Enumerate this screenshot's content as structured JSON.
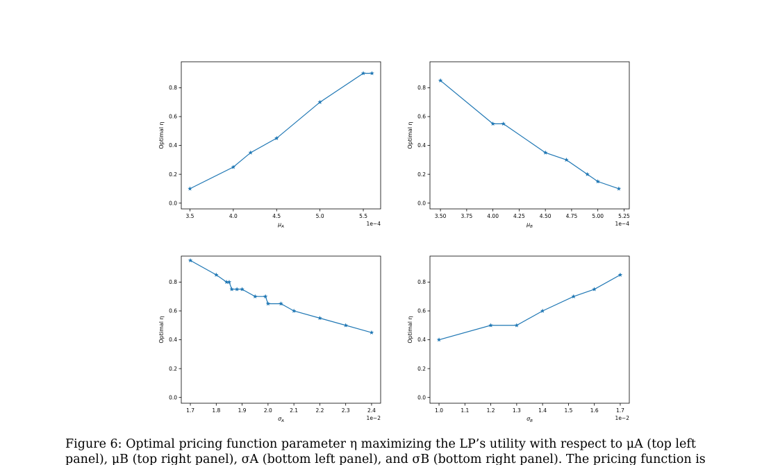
{
  "chart_data": [
    {
      "type": "line",
      "panel": "top-left",
      "x": [
        3.5,
        4.0,
        4.2,
        4.5,
        5.0,
        5.5,
        5.6
      ],
      "series": [
        {
          "values": [
            0.1,
            0.25,
            0.35,
            0.45,
            0.7,
            0.9,
            0.9
          ],
          "marker": "star"
        }
      ],
      "xlabel": "μ",
      "xlabel_sub": "A",
      "ylabel": "Optimal η",
      "xticks": [
        "3.5",
        "4.0",
        "4.5",
        "5.0",
        "5.5"
      ],
      "yticks": [
        "0.0",
        "0.2",
        "0.4",
        "0.6",
        "0.8"
      ],
      "offset_text": "1e−4",
      "xlim": [
        3.4,
        5.7
      ],
      "ylim": [
        -0.04,
        0.98
      ],
      "color": "#1f77b4"
    },
    {
      "type": "line",
      "panel": "top-right",
      "x": [
        3.5,
        4.0,
        4.1,
        4.5,
        4.7,
        4.9,
        5.0,
        5.2
      ],
      "series": [
        {
          "values": [
            0.85,
            0.55,
            0.55,
            0.35,
            0.3,
            0.2,
            0.15,
            0.1
          ],
          "marker": "star"
        }
      ],
      "xlabel": "μ",
      "xlabel_sub": "B",
      "ylabel": "Optimal η",
      "xticks": [
        "3.50",
        "3.75",
        "4.00",
        "4.25",
        "4.50",
        "4.75",
        "5.00",
        "5.25"
      ],
      "yticks": [
        "0.0",
        "0.2",
        "0.4",
        "0.6",
        "0.8"
      ],
      "offset_text": "1e−4",
      "xlim": [
        3.4,
        5.3
      ],
      "ylim": [
        -0.04,
        0.98
      ],
      "color": "#1f77b4"
    },
    {
      "type": "line",
      "panel": "bottom-left",
      "x": [
        1.7,
        1.8,
        1.84,
        1.85,
        1.86,
        1.88,
        1.9,
        1.95,
        1.99,
        2.0,
        2.05,
        2.1,
        2.2,
        2.3,
        2.4
      ],
      "series": [
        {
          "values": [
            0.95,
            0.85,
            0.8,
            0.8,
            0.75,
            0.75,
            0.75,
            0.7,
            0.7,
            0.65,
            0.65,
            0.6,
            0.55,
            0.5,
            0.45
          ],
          "marker": "star"
        }
      ],
      "xlabel": "σ",
      "xlabel_sub": "A",
      "ylabel": "Optimal η",
      "xticks": [
        "1.7",
        "1.8",
        "1.9",
        "2.0",
        "2.1",
        "2.2",
        "2.3",
        "2.4"
      ],
      "yticks": [
        "0.0",
        "0.2",
        "0.4",
        "0.6",
        "0.8"
      ],
      "offset_text": "1e−2",
      "xlim": [
        1.665,
        2.435
      ],
      "ylim": [
        -0.04,
        0.98
      ],
      "color": "#1f77b4"
    },
    {
      "type": "line",
      "panel": "bottom-right",
      "x": [
        1.0,
        1.2,
        1.3,
        1.4,
        1.52,
        1.6,
        1.7
      ],
      "series": [
        {
          "values": [
            0.4,
            0.5,
            0.5,
            0.6,
            0.7,
            0.75,
            0.85
          ],
          "marker": "star"
        }
      ],
      "xlabel": "σ",
      "xlabel_sub": "B",
      "ylabel": "Optimal η",
      "xticks": [
        "1.0",
        "1.1",
        "1.2",
        "1.3",
        "1.4",
        "1.5",
        "1.6",
        "1.7"
      ],
      "yticks": [
        "0.0",
        "0.2",
        "0.4",
        "0.6",
        "0.8"
      ],
      "offset_text": "1e−2",
      "xlim": [
        0.965,
        1.735
      ],
      "ylim": [
        -0.04,
        0.98
      ],
      "color": "#1f77b4"
    }
  ],
  "caption": {
    "line1": "Figure 6:  Optimal pricing function parameter η maximizing the LP’s utility with respect to μA (top left",
    "line2": "panel), μB (top right panel), σA (bottom left panel), and σB (bottom right panel). The pricing function is"
  }
}
